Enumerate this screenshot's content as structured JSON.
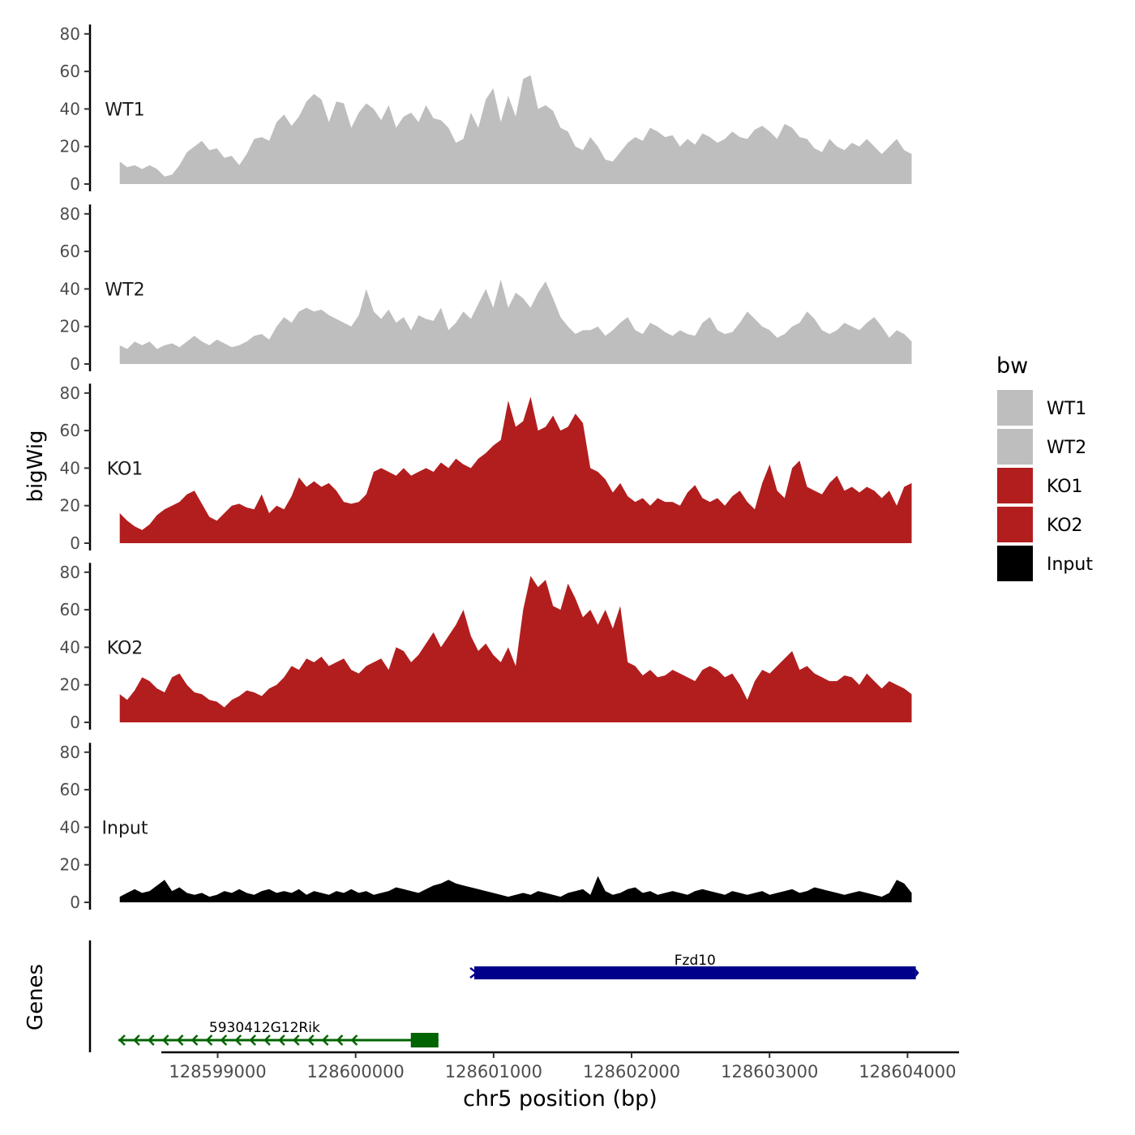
{
  "chart_data": {
    "type": "area",
    "title": "",
    "xlabel": "chr5 position (bp)",
    "ylabel": "bigWig",
    "genes_label": "Genes",
    "legend_title": "bw",
    "legend_position": "right",
    "ylim": [
      0,
      85
    ],
    "y_ticks": [
      0,
      20,
      40,
      60,
      80
    ],
    "xlim": [
      128598300,
      128604050
    ],
    "x_ticks": [
      128599000,
      128600000,
      128601000,
      128602000,
      128603000,
      128604000
    ],
    "x_tick_labels": [
      "128599000",
      "128600000",
      "128601000",
      "128602000",
      "128603000",
      "128604000"
    ],
    "x_start": 128598290,
    "x_end": 128604030,
    "series": [
      {
        "name": "WT1",
        "color": "#bebebe",
        "values": [
          12,
          9,
          10,
          8,
          10,
          8,
          4,
          5,
          10,
          17,
          20,
          23,
          18,
          19,
          14,
          15,
          10,
          16,
          24,
          25,
          23,
          33,
          37,
          31,
          36,
          44,
          48,
          45,
          33,
          44,
          43,
          30,
          38,
          43,
          40,
          34,
          42,
          30,
          36,
          38,
          33,
          42,
          35,
          34,
          30,
          22,
          24,
          38,
          30,
          45,
          51,
          33,
          47,
          36,
          56,
          58,
          40,
          42,
          39,
          30,
          28,
          20,
          18,
          25,
          20,
          13,
          12,
          17,
          22,
          25,
          23,
          30,
          28,
          25,
          26,
          20,
          24,
          21,
          27,
          25,
          22,
          24,
          28,
          25,
          24,
          29,
          31,
          28,
          24,
          32,
          30,
          25,
          24,
          19,
          17,
          24,
          20,
          18,
          22,
          20,
          24,
          20,
          16,
          20,
          24,
          18,
          16
        ]
      },
      {
        "name": "WT2",
        "color": "#bebebe",
        "values": [
          10,
          8,
          12,
          10,
          12,
          8,
          10,
          11,
          9,
          12,
          15,
          12,
          10,
          13,
          11,
          9,
          10,
          12,
          15,
          16,
          13,
          20,
          25,
          22,
          28,
          30,
          28,
          29,
          26,
          24,
          22,
          20,
          26,
          40,
          28,
          24,
          29,
          22,
          25,
          18,
          26,
          24,
          23,
          30,
          18,
          22,
          28,
          24,
          32,
          40,
          30,
          45,
          30,
          38,
          35,
          30,
          38,
          44,
          35,
          25,
          20,
          16,
          18,
          18,
          20,
          15,
          18,
          22,
          25,
          18,
          16,
          22,
          20,
          17,
          15,
          18,
          16,
          15,
          22,
          25,
          18,
          16,
          17,
          22,
          28,
          24,
          20,
          18,
          14,
          16,
          20,
          22,
          28,
          24,
          18,
          16,
          18,
          22,
          20,
          18,
          22,
          25,
          20,
          14,
          18,
          16,
          12
        ]
      },
      {
        "name": "KO1",
        "color": "#b21e1e",
        "values": [
          16,
          12,
          9,
          7,
          10,
          15,
          18,
          20,
          22,
          26,
          28,
          21,
          14,
          12,
          16,
          20,
          21,
          19,
          18,
          26,
          16,
          20,
          18,
          25,
          35,
          30,
          33,
          30,
          32,
          28,
          22,
          21,
          22,
          26,
          38,
          40,
          38,
          36,
          40,
          36,
          38,
          40,
          38,
          43,
          40,
          45,
          42,
          40,
          45,
          48,
          52,
          55,
          76,
          62,
          65,
          78,
          60,
          62,
          68,
          60,
          62,
          69,
          64,
          40,
          38,
          34,
          27,
          32,
          25,
          22,
          24,
          20,
          24,
          22,
          22,
          20,
          27,
          31,
          24,
          22,
          24,
          20,
          25,
          28,
          22,
          18,
          32,
          42,
          28,
          24,
          40,
          44,
          30,
          28,
          26,
          32,
          36,
          28,
          30,
          27,
          30,
          28,
          24,
          28,
          20,
          30,
          32
        ]
      },
      {
        "name": "KO2",
        "color": "#b21e1e",
        "values": [
          15,
          12,
          17,
          24,
          22,
          18,
          16,
          24,
          26,
          20,
          16,
          15,
          12,
          11,
          8,
          12,
          14,
          17,
          16,
          14,
          18,
          20,
          24,
          30,
          28,
          34,
          32,
          35,
          30,
          32,
          34,
          28,
          26,
          30,
          32,
          34,
          28,
          40,
          38,
          32,
          36,
          42,
          48,
          40,
          46,
          52,
          60,
          46,
          38,
          42,
          36,
          32,
          40,
          30,
          60,
          78,
          72,
          76,
          62,
          60,
          74,
          66,
          56,
          60,
          52,
          60,
          50,
          62,
          32,
          30,
          25,
          28,
          24,
          25,
          28,
          26,
          24,
          22,
          28,
          30,
          28,
          24,
          26,
          20,
          12,
          22,
          28,
          26,
          30,
          34,
          38,
          28,
          30,
          26,
          24,
          22,
          22,
          25,
          24,
          20,
          26,
          22,
          18,
          22,
          20,
          18,
          15
        ]
      },
      {
        "name": "Input",
        "color": "#000000",
        "values": [
          3,
          5,
          7,
          5,
          6,
          9,
          12,
          6,
          8,
          5,
          4,
          5,
          3,
          4,
          6,
          5,
          7,
          5,
          4,
          6,
          7,
          5,
          6,
          5,
          7,
          4,
          6,
          5,
          4,
          6,
          5,
          7,
          5,
          6,
          4,
          5,
          6,
          8,
          7,
          6,
          5,
          7,
          9,
          10,
          12,
          10,
          9,
          8,
          7,
          6,
          5,
          4,
          3,
          4,
          5,
          4,
          6,
          5,
          4,
          3,
          5,
          6,
          7,
          4,
          14,
          6,
          4,
          5,
          7,
          8,
          5,
          6,
          4,
          5,
          6,
          5,
          4,
          6,
          7,
          6,
          5,
          4,
          6,
          5,
          4,
          5,
          6,
          4,
          5,
          6,
          7,
          5,
          6,
          8,
          7,
          6,
          5,
          4,
          5,
          6,
          5,
          4,
          3,
          5,
          12,
          10,
          5
        ]
      }
    ],
    "track_labels": [
      "WT1",
      "WT2",
      "KO1",
      "KO2",
      "Input"
    ],
    "legend": [
      {
        "label": "WT1",
        "color": "#bebebe"
      },
      {
        "label": "WT2",
        "color": "#bebebe"
      },
      {
        "label": "KO1",
        "color": "#b21e1e"
      },
      {
        "label": "KO2",
        "color": "#b21e1e"
      },
      {
        "label": "Input",
        "color": "#000000"
      }
    ],
    "genes": [
      {
        "name": "Fzd10",
        "start": 128600860,
        "end": 128604060,
        "strand": "+",
        "color": "#00008b",
        "row": 1
      },
      {
        "name": "5930412G12Rik",
        "start": 128598280,
        "end": 128600600,
        "strand": "-",
        "color": "#006400",
        "row": 2,
        "exon_start": 128600400,
        "exon_end": 128600600
      }
    ]
  }
}
